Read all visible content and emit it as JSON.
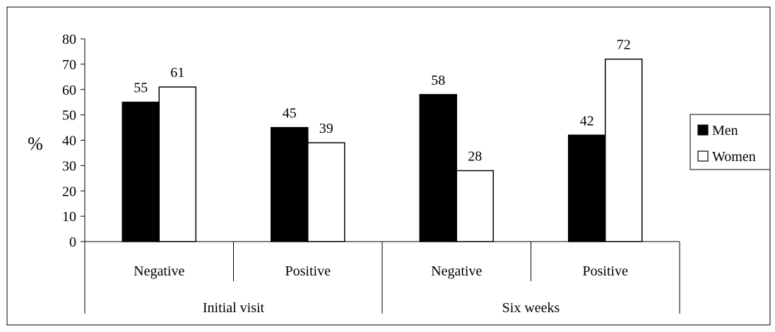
{
  "chart_data": {
    "type": "bar",
    "title": "",
    "xlabel": "",
    "ylabel": "%",
    "ylim": [
      0,
      80
    ],
    "yticks": [
      0,
      10,
      20,
      30,
      40,
      50,
      60,
      70,
      80
    ],
    "grid": false,
    "legend_position": "right",
    "groups": [
      "Initial visit",
      "Six weeks"
    ],
    "categories": [
      "Negative",
      "Positive",
      "Negative",
      "Positive"
    ],
    "category_group": [
      0,
      0,
      1,
      1
    ],
    "series": [
      {
        "name": "Men",
        "values": [
          55,
          45,
          58,
          42
        ],
        "color": "#000000"
      },
      {
        "name": "Women",
        "values": [
          61,
          39,
          28,
          72
        ],
        "color": "#ffffff"
      }
    ],
    "data_labels": true
  }
}
